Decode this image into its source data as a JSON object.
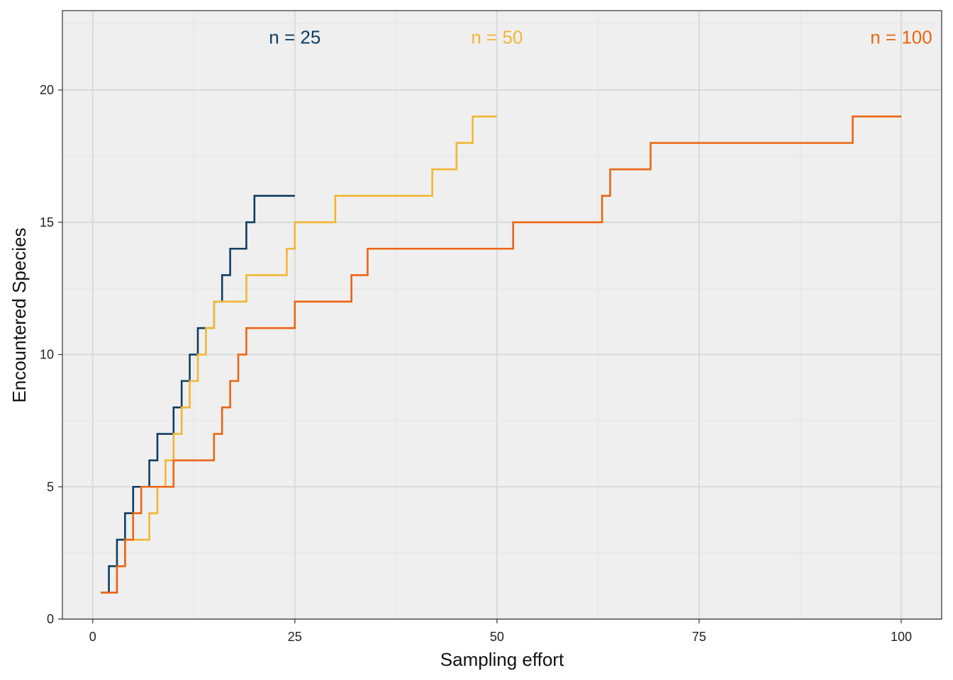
{
  "chart_data": {
    "type": "line",
    "step": true,
    "title": "",
    "xlabel": "Sampling effort",
    "ylabel": "Encountered Species",
    "xlim": [
      -3.75,
      105
    ],
    "ylim": [
      0,
      23
    ],
    "xticks": [
      0,
      25,
      50,
      75,
      100
    ],
    "yticks": [
      0,
      5,
      10,
      15,
      20
    ],
    "grid": true,
    "background": "#EFEFEF",
    "legend": "none (direct labels at top)",
    "series": [
      {
        "name": "n = 25",
        "color": "#0F3D62",
        "label_x": 25,
        "label_y": 22,
        "x": [
          1,
          2,
          3,
          4,
          5,
          6,
          7,
          8,
          9,
          10,
          11,
          12,
          13,
          14,
          15,
          16,
          17,
          18,
          19,
          20,
          21,
          22,
          23,
          24,
          25
        ],
        "y": [
          1,
          2,
          3,
          4,
          5,
          5,
          6,
          7,
          7,
          8,
          9,
          10,
          11,
          11,
          12,
          13,
          14,
          14,
          15,
          16,
          16,
          16,
          16,
          16,
          16
        ]
      },
      {
        "name": "n = 50",
        "color": "#F2B632",
        "label_x": 50,
        "label_y": 22,
        "x": [
          1,
          2,
          3,
          4,
          5,
          6,
          7,
          8,
          9,
          10,
          11,
          12,
          13,
          14,
          15,
          16,
          17,
          18,
          19,
          20,
          21,
          22,
          23,
          24,
          25,
          26,
          27,
          28,
          29,
          30,
          31,
          32,
          33,
          34,
          35,
          36,
          37,
          38,
          39,
          40,
          41,
          42,
          43,
          44,
          45,
          46,
          47,
          48,
          49,
          50
        ],
        "y": [
          1,
          1,
          2,
          3,
          3,
          3,
          4,
          5,
          6,
          7,
          8,
          9,
          10,
          11,
          12,
          12,
          12,
          12,
          13,
          13,
          13,
          13,
          13,
          14,
          15,
          15,
          15,
          15,
          15,
          16,
          16,
          16,
          16,
          16,
          16,
          16,
          16,
          16,
          16,
          16,
          16,
          17,
          17,
          17,
          18,
          18,
          19,
          19,
          19,
          19
        ]
      },
      {
        "name": "n = 100",
        "color": "#EB6511",
        "label_x": 100,
        "label_y": 22,
        "x": [
          1,
          2,
          3,
          4,
          5,
          6,
          7,
          8,
          9,
          10,
          15,
          16,
          17,
          18,
          19,
          25,
          32,
          34,
          52,
          63,
          64,
          69,
          94,
          100
        ],
        "y": [
          1,
          1,
          2,
          3,
          4,
          5,
          5,
          5,
          5,
          6,
          7,
          8,
          9,
          10,
          11,
          12,
          13,
          14,
          15,
          16,
          17,
          18,
          19,
          19
        ]
      }
    ]
  }
}
